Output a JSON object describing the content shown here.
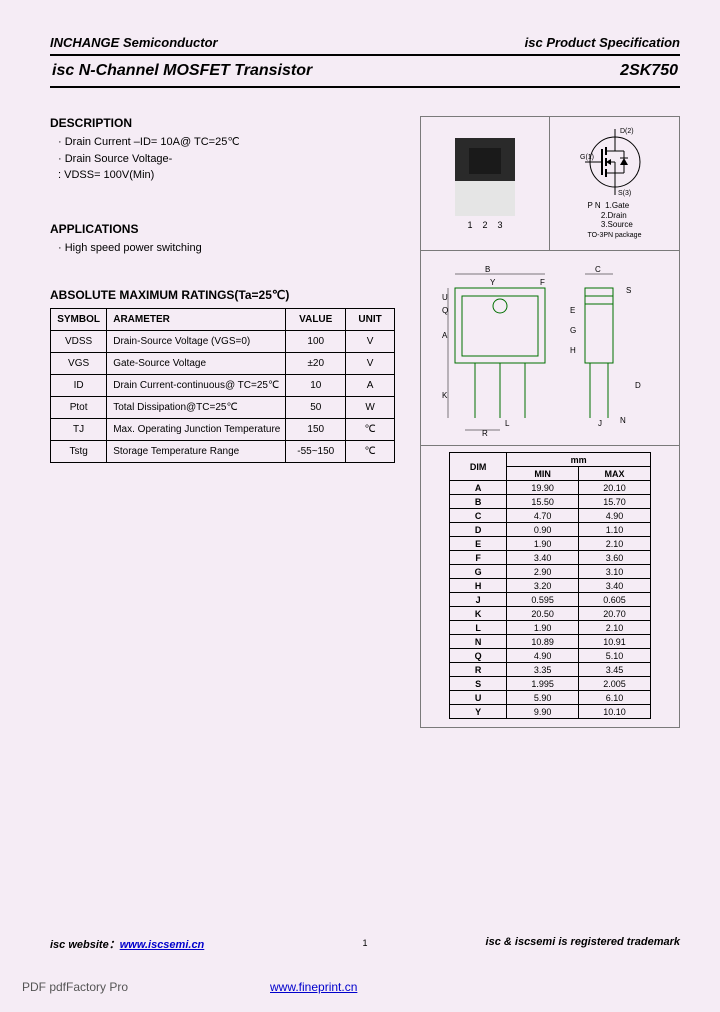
{
  "header": {
    "left": "INCHANGE Semiconductor",
    "right": "isc Product Specification"
  },
  "title": {
    "product": "isc N-Channel MOSFET Transistor",
    "part": "2SK750"
  },
  "description": {
    "heading": "DESCRIPTION",
    "lines": [
      "· Drain Current –ID= 10A@ TC=25℃",
      "· Drain Source Voltage-",
      "  : VDSS= 100V(Min)"
    ]
  },
  "applications": {
    "heading": "APPLICATIONS",
    "line": "· High speed power switching"
  },
  "ratings": {
    "heading": "ABSOLUTE MAXIMUM RATINGS(Ta=25℃)",
    "columns": [
      "SYMBOL",
      "ARAMETER",
      "VALUE",
      "UNIT"
    ],
    "rows": [
      {
        "sym": "VDSS",
        "param": "Drain-Source Voltage (VGS=0)",
        "val": "100",
        "unit": "V"
      },
      {
        "sym": "VGS",
        "param": "Gate-Source Voltage",
        "val": "±20",
        "unit": "V"
      },
      {
        "sym": "ID",
        "param": "Drain Current-continuous@ TC=25℃",
        "val": "10",
        "unit": "A"
      },
      {
        "sym": "Ptot",
        "param": "Total Dissipation@TC=25℃",
        "val": "50",
        "unit": "W"
      },
      {
        "sym": "TJ",
        "param": "Max. Operating Junction Temperature",
        "val": "150",
        "unit": "℃"
      },
      {
        "sym": "Tstg",
        "param": "Storage Temperature Range",
        "val": "-55~150",
        "unit": "℃"
      }
    ]
  },
  "pins": {
    "heading": "P N",
    "lines": [
      "1.Gate",
      "2.Drain",
      "3.Source"
    ],
    "package": "TO-3PN package",
    "d_label": "D(2)",
    "g_label": "G(1)",
    "s_label": "S(3)"
  },
  "leads": [
    "1",
    "2",
    "3"
  ],
  "dimensions": {
    "unit_label": "mm",
    "columns": [
      "DIM",
      "MIN",
      "MAX"
    ],
    "rows": [
      [
        "A",
        "19.90",
        "20.10"
      ],
      [
        "B",
        "15.50",
        "15.70"
      ],
      [
        "C",
        "4.70",
        "4.90"
      ],
      [
        "D",
        "0.90",
        "1.10"
      ],
      [
        "E",
        "1.90",
        "2.10"
      ],
      [
        "F",
        "3.40",
        "3.60"
      ],
      [
        "G",
        "2.90",
        "3.10"
      ],
      [
        "H",
        "3.20",
        "3.40"
      ],
      [
        "J",
        "0.595",
        "0.605"
      ],
      [
        "K",
        "20.50",
        "20.70"
      ],
      [
        "L",
        "1.90",
        "2.10"
      ],
      [
        "N",
        "10.89",
        "10.91"
      ],
      [
        "Q",
        "4.90",
        "5.10"
      ],
      [
        "R",
        "3.35",
        "3.45"
      ],
      [
        "S",
        "1.995",
        "2.005"
      ],
      [
        "U",
        "5.90",
        "6.10"
      ],
      [
        "Y",
        "9.90",
        "10.10"
      ]
    ]
  },
  "footer": {
    "left_prefix": "isc website：",
    "left_link": "www.iscsemi.cn",
    "right": "isc & iscsemi is registered trademark",
    "page": "1"
  },
  "pdf": {
    "text": "PDF  pdfFactory Pro",
    "link": "www.fineprint.cn"
  },
  "outline_labels": [
    "B",
    "Y",
    "F",
    "C",
    "S",
    "U",
    "Q",
    "A",
    "E",
    "G",
    "H",
    "K",
    "L",
    "J",
    "R",
    "N",
    "D"
  ]
}
